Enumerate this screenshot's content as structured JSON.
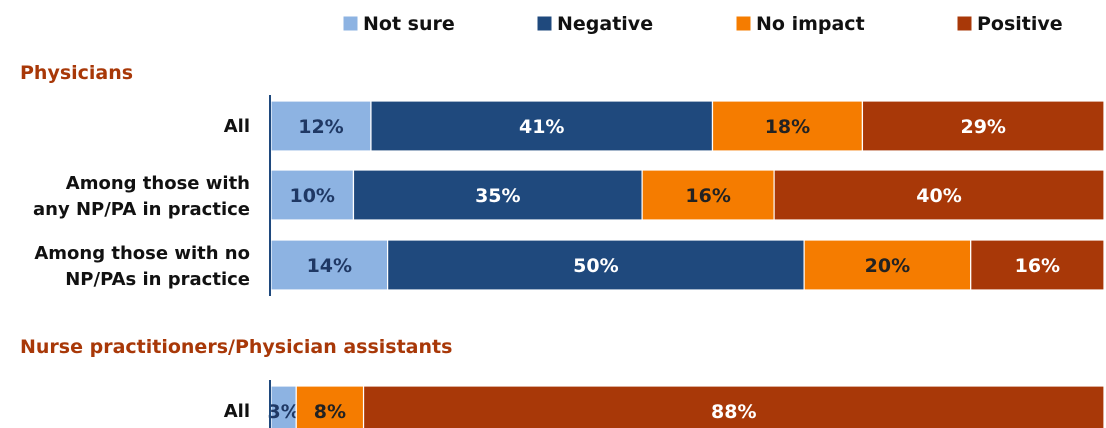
{
  "chart_data": {
    "type": "bar",
    "orientation": "horizontal",
    "stacked": true,
    "normalized_percent": true,
    "legend": [
      {
        "name": "Not sure",
        "color": "#8DB3E2"
      },
      {
        "name": "Negative",
        "color": "#1F497D"
      },
      {
        "name": "No impact",
        "color": "#F57C00"
      },
      {
        "name": "Positive",
        "color": "#A83808"
      }
    ],
    "legend_position": "top",
    "group_title_color": "#A83808",
    "groups": [
      {
        "title": "Physicians",
        "rows": [
          {
            "label_lines": [
              "All"
            ],
            "values": [
              12,
              41,
              18,
              29
            ],
            "labels": [
              "12%",
              "41%",
              "18%",
              "29%"
            ]
          },
          {
            "label_lines": [
              "Among those with",
              "any NP/PA in practice"
            ],
            "values": [
              10,
              35,
              16,
              40
            ],
            "labels": [
              "10%",
              "35%",
              "16%",
              "40%"
            ]
          },
          {
            "label_lines": [
              "Among those with no",
              "NP/PAs in practice"
            ],
            "values": [
              14,
              50,
              20,
              16
            ],
            "labels": [
              "14%",
              "50%",
              "20%",
              "16%"
            ]
          }
        ]
      },
      {
        "title": "Nurse practitioners/Physician assistants",
        "rows": [
          {
            "label_lines": [
              "All"
            ],
            "values": [
              3,
              0,
              8,
              88
            ],
            "labels": [
              "3%",
              "",
              "8%",
              "88%"
            ]
          }
        ]
      }
    ]
  }
}
